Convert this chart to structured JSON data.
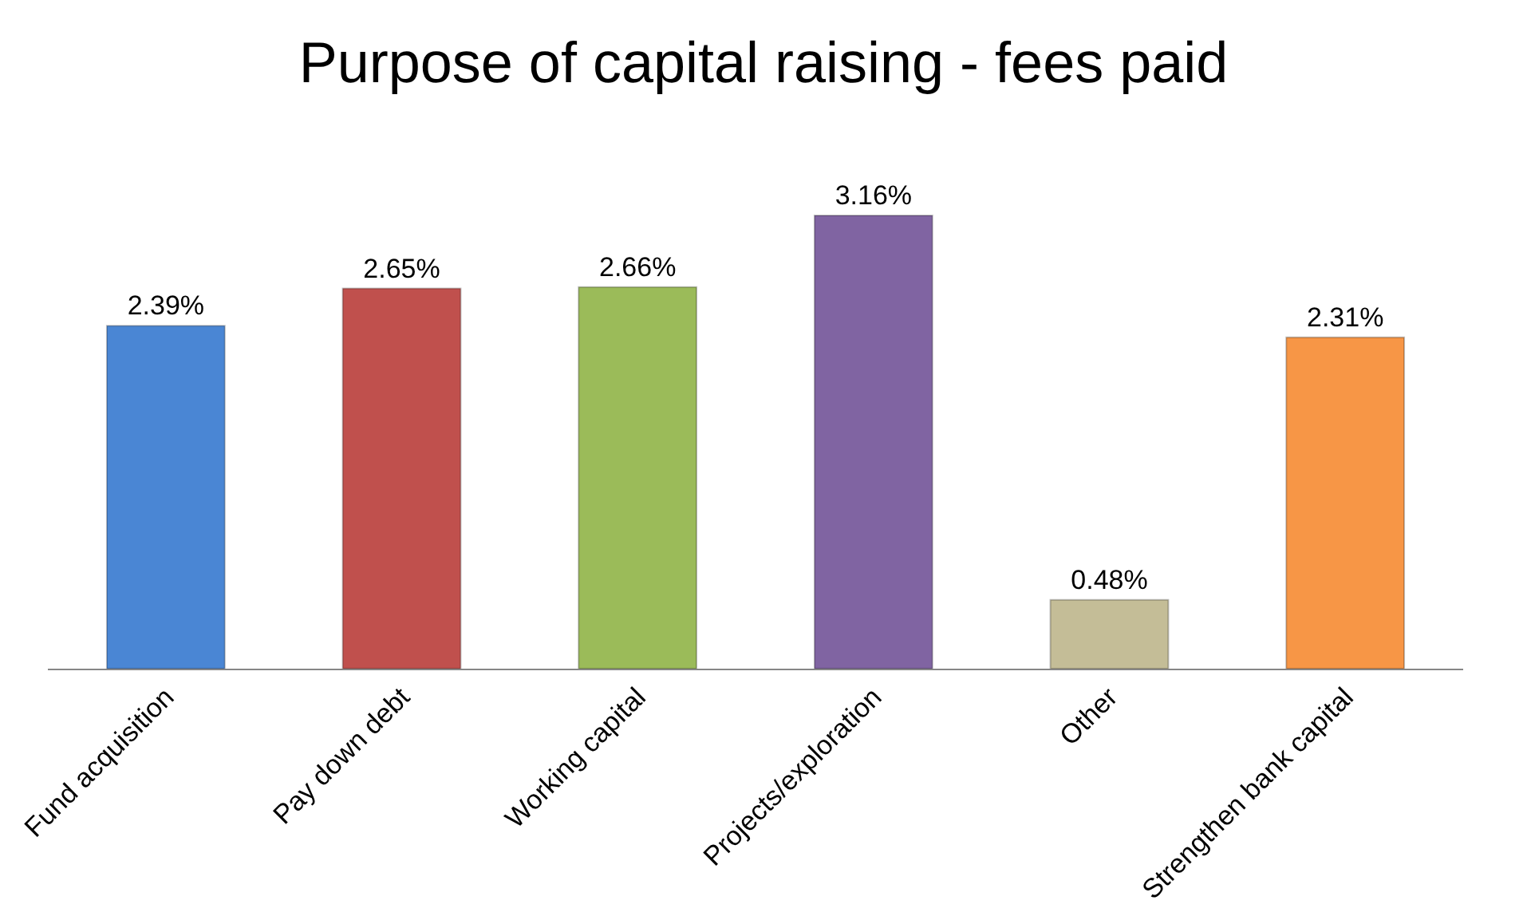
{
  "chart_data": {
    "type": "bar",
    "title": "Purpose of capital raising - fees paid",
    "categories": [
      "Fund acquisition",
      "Pay down debt",
      "Working capital",
      "Projects/exploration",
      "Other",
      "Strengthen bank capital"
    ],
    "values": [
      2.39,
      2.65,
      2.66,
      3.16,
      0.48,
      2.31
    ],
    "value_labels": [
      "2.39%",
      "2.65%",
      "2.66%",
      "3.16%",
      "0.48%",
      "2.31%"
    ],
    "colors": [
      "#4a86d4",
      "#c0504d",
      "#9bbb59",
      "#8064a2",
      "#c4bd97",
      "#f79646"
    ]
  }
}
